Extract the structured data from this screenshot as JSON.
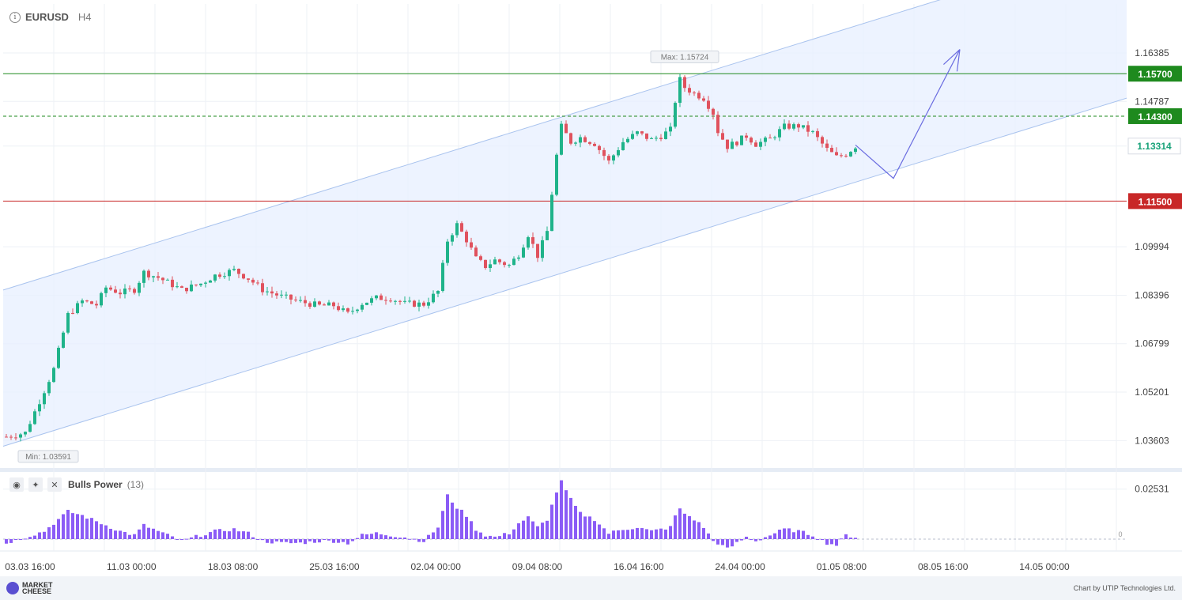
{
  "header": {
    "symbol": "EURUSD",
    "timeframe": "H4",
    "info_icon": "info-icon"
  },
  "chart_data": {
    "type": "candlestick",
    "symbol": "EURUSD",
    "timeframe": "H4",
    "y_ticks": [
      "1.16385",
      "1.14787",
      "1.13314",
      "1.09994",
      "1.08396",
      "1.06799",
      "1.05201",
      "1.03603"
    ],
    "y_tick_values": [
      1.16385,
      1.14787,
      1.13314,
      1.09994,
      1.08396,
      1.06799,
      1.05201,
      1.03603
    ],
    "ylim": [
      1.027,
      1.18
    ],
    "x_ticks": [
      "03.03 16:00",
      "11.03 00:00",
      "18.03 08:00",
      "25.03 16:00",
      "02.04 00:00",
      "09.04 08:00",
      "16.04 16:00",
      "24.04 00:00",
      "01.05 08:00",
      "08.05 16:00",
      "14.05 00:00"
    ],
    "max_label": "Max: 1.15724",
    "min_label": "Min: 1.03591",
    "current_price_label": "1.13314",
    "levels": [
      {
        "value": 1.157,
        "label": "1.15700",
        "color": "#1e8a1e",
        "style": "solid"
      },
      {
        "value": 1.143,
        "label": "1.14300",
        "color": "#1e8a1e",
        "style": "dashed"
      },
      {
        "value": 1.115,
        "label": "1.11500",
        "color": "#c82828",
        "style": "solid"
      }
    ],
    "channel": {
      "lower_start": {
        "bar": 0,
        "price": 1.0345
      },
      "lower_end": {
        "bar": 227,
        "price": 1.1445
      },
      "width": 0.0515
    },
    "forecast_path": [
      {
        "bar": 179,
        "price": 1.1335
      },
      {
        "bar": 187,
        "price": 1.1225
      },
      {
        "bar": 201,
        "price": 1.165
      }
    ],
    "close_path": [
      {
        "bar": 0,
        "price": 1.0373
      },
      {
        "bar": 4,
        "price": 1.0386
      },
      {
        "bar": 8,
        "price": 1.0525
      },
      {
        "bar": 10,
        "price": 1.0596
      },
      {
        "bar": 13,
        "price": 1.0775
      },
      {
        "bar": 16,
        "price": 1.082
      },
      {
        "bar": 19,
        "price": 1.0808
      },
      {
        "bar": 21,
        "price": 1.0865
      },
      {
        "bar": 24,
        "price": 1.0848
      },
      {
        "bar": 27,
        "price": 1.0858
      },
      {
        "bar": 29,
        "price": 1.0915
      },
      {
        "bar": 32,
        "price": 1.0898
      },
      {
        "bar": 35,
        "price": 1.0874
      },
      {
        "bar": 37,
        "price": 1.0857
      },
      {
        "bar": 41,
        "price": 1.0878
      },
      {
        "bar": 44,
        "price": 1.0905
      },
      {
        "bar": 48,
        "price": 1.0922
      },
      {
        "bar": 51,
        "price": 1.0895
      },
      {
        "bar": 54,
        "price": 1.0858
      },
      {
        "bar": 58,
        "price": 1.0835
      },
      {
        "bar": 62,
        "price": 1.0818
      },
      {
        "bar": 66,
        "price": 1.0805
      },
      {
        "bar": 69,
        "price": 1.0806
      },
      {
        "bar": 72,
        "price": 1.0778
      },
      {
        "bar": 75,
        "price": 1.0813
      },
      {
        "bar": 78,
        "price": 1.083
      },
      {
        "bar": 81,
        "price": 1.083
      },
      {
        "bar": 84,
        "price": 1.0812
      },
      {
        "bar": 88,
        "price": 1.081
      },
      {
        "bar": 91,
        "price": 1.0852
      },
      {
        "bar": 93,
        "price": 1.102
      },
      {
        "bar": 95,
        "price": 1.1072
      },
      {
        "bar": 97,
        "price": 1.1022
      },
      {
        "bar": 99,
        "price": 1.096
      },
      {
        "bar": 101,
        "price": 1.0935
      },
      {
        "bar": 103,
        "price": 1.0955
      },
      {
        "bar": 106,
        "price": 1.0938
      },
      {
        "bar": 108,
        "price": 1.0975
      },
      {
        "bar": 110,
        "price": 1.104
      },
      {
        "bar": 112,
        "price": 1.097
      },
      {
        "bar": 114,
        "price": 1.105
      },
      {
        "bar": 116,
        "price": 1.13
      },
      {
        "bar": 117,
        "price": 1.1395
      },
      {
        "bar": 119,
        "price": 1.1345
      },
      {
        "bar": 121,
        "price": 1.136
      },
      {
        "bar": 124,
        "price": 1.134
      },
      {
        "bar": 127,
        "price": 1.128
      },
      {
        "bar": 130,
        "price": 1.1345
      },
      {
        "bar": 133,
        "price": 1.1375
      },
      {
        "bar": 136,
        "price": 1.1352
      },
      {
        "bar": 138,
        "price": 1.1365
      },
      {
        "bar": 140,
        "price": 1.1385
      },
      {
        "bar": 141,
        "price": 1.148
      },
      {
        "bar": 142,
        "price": 1.155
      },
      {
        "bar": 143,
        "price": 1.1525
      },
      {
        "bar": 145,
        "price": 1.1505
      },
      {
        "bar": 147,
        "price": 1.149
      },
      {
        "bar": 149,
        "price": 1.144
      },
      {
        "bar": 150,
        "price": 1.138
      },
      {
        "bar": 152,
        "price": 1.133
      },
      {
        "bar": 154,
        "price": 1.1345
      },
      {
        "bar": 156,
        "price": 1.1365
      },
      {
        "bar": 158,
        "price": 1.1338
      },
      {
        "bar": 161,
        "price": 1.1355
      },
      {
        "bar": 164,
        "price": 1.1395
      },
      {
        "bar": 167,
        "price": 1.1398
      },
      {
        "bar": 170,
        "price": 1.1375
      },
      {
        "bar": 173,
        "price": 1.132
      },
      {
        "bar": 175,
        "price": 1.1295
      },
      {
        "bar": 177,
        "price": 1.1305
      },
      {
        "bar": 179,
        "price": 1.1331
      }
    ],
    "indicator": {
      "name": "Bulls Power",
      "period": "(13)",
      "y_ticks": [
        "0.02531",
        "0"
      ],
      "y_tick_values": [
        0.02531,
        0
      ],
      "ylim": [
        -0.006,
        0.034
      ],
      "profile": [
        {
          "bar": 0,
          "value": -0.002
        },
        {
          "bar": 4,
          "value": 0.001
        },
        {
          "bar": 8,
          "value": 0.004
        },
        {
          "bar": 10,
          "value": 0.008
        },
        {
          "bar": 13,
          "value": 0.014
        },
        {
          "bar": 16,
          "value": 0.012
        },
        {
          "bar": 19,
          "value": 0.009
        },
        {
          "bar": 21,
          "value": 0.007
        },
        {
          "bar": 24,
          "value": 0.004
        },
        {
          "bar": 27,
          "value": 0.002
        },
        {
          "bar": 29,
          "value": 0.007
        },
        {
          "bar": 32,
          "value": 0.004
        },
        {
          "bar": 35,
          "value": 0.001
        },
        {
          "bar": 37,
          "value": -0.001
        },
        {
          "bar": 41,
          "value": 0.002
        },
        {
          "bar": 44,
          "value": 0.004
        },
        {
          "bar": 48,
          "value": 0.005
        },
        {
          "bar": 51,
          "value": 0.003
        },
        {
          "bar": 54,
          "value": -0.001
        },
        {
          "bar": 58,
          "value": -0.002
        },
        {
          "bar": 62,
          "value": -0.002
        },
        {
          "bar": 66,
          "value": -0.001
        },
        {
          "bar": 69,
          "value": -0.001
        },
        {
          "bar": 72,
          "value": -0.002
        },
        {
          "bar": 75,
          "value": 0.002
        },
        {
          "bar": 78,
          "value": 0.003
        },
        {
          "bar": 81,
          "value": 0.002
        },
        {
          "bar": 84,
          "value": 0.001
        },
        {
          "bar": 88,
          "value": -0.001
        },
        {
          "bar": 91,
          "value": 0.006
        },
        {
          "bar": 93,
          "value": 0.022
        },
        {
          "bar": 95,
          "value": 0.016
        },
        {
          "bar": 97,
          "value": 0.012
        },
        {
          "bar": 99,
          "value": 0.005
        },
        {
          "bar": 101,
          "value": 0.002
        },
        {
          "bar": 103,
          "value": 0.001
        },
        {
          "bar": 106,
          "value": 0.003
        },
        {
          "bar": 108,
          "value": 0.008
        },
        {
          "bar": 110,
          "value": 0.011
        },
        {
          "bar": 112,
          "value": 0.006
        },
        {
          "bar": 114,
          "value": 0.01
        },
        {
          "bar": 116,
          "value": 0.024
        },
        {
          "bar": 117,
          "value": 0.029
        },
        {
          "bar": 119,
          "value": 0.02
        },
        {
          "bar": 121,
          "value": 0.013
        },
        {
          "bar": 124,
          "value": 0.01
        },
        {
          "bar": 127,
          "value": 0.003
        },
        {
          "bar": 130,
          "value": 0.005
        },
        {
          "bar": 133,
          "value": 0.006
        },
        {
          "bar": 136,
          "value": 0.004
        },
        {
          "bar": 138,
          "value": 0.005
        },
        {
          "bar": 140,
          "value": 0.006
        },
        {
          "bar": 141,
          "value": 0.012
        },
        {
          "bar": 142,
          "value": 0.015
        },
        {
          "bar": 143,
          "value": 0.013
        },
        {
          "bar": 145,
          "value": 0.01
        },
        {
          "bar": 147,
          "value": 0.006
        },
        {
          "bar": 149,
          "value": -0.001
        },
        {
          "bar": 150,
          "value": -0.002
        },
        {
          "bar": 152,
          "value": -0.005
        },
        {
          "bar": 154,
          "value": -0.002
        },
        {
          "bar": 156,
          "value": 0.001
        },
        {
          "bar": 158,
          "value": -0.001
        },
        {
          "bar": 161,
          "value": 0.002
        },
        {
          "bar": 164,
          "value": 0.005
        },
        {
          "bar": 167,
          "value": 0.004
        },
        {
          "bar": 170,
          "value": 0.002
        },
        {
          "bar": 173,
          "value": -0.002
        },
        {
          "bar": 175,
          "value": -0.003
        },
        {
          "bar": 177,
          "value": 0.002
        },
        {
          "bar": 179,
          "value": 0.001
        }
      ]
    },
    "colors": {
      "bull": "#1fb38a",
      "bear": "#e0525e",
      "indicator": "#8b5cf6",
      "channel_fill": "#e7efff",
      "channel_line": "#a9c3ee",
      "forecast": "#6a6ce0"
    }
  },
  "indicator_header": {
    "name": "Bulls Power",
    "period": "(13)",
    "icons": [
      "eye-icon",
      "wrench-icon",
      "close-icon"
    ]
  },
  "footer": {
    "brand_line1": "MARKET",
    "brand_line2": "CHEESE",
    "credit": "Chart by UTIP Technologies Ltd."
  }
}
